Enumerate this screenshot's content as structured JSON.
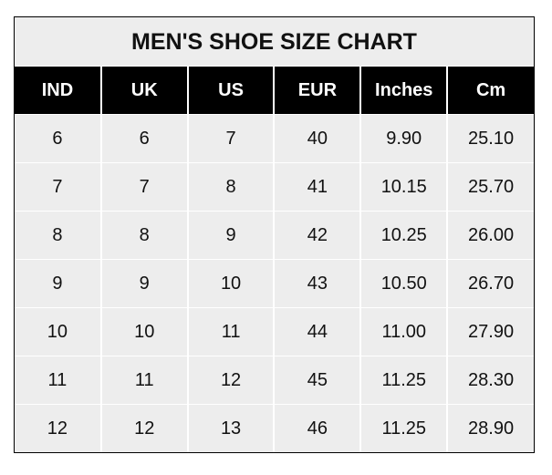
{
  "title": "MEN'S SHOE SIZE CHART",
  "columns": [
    "IND",
    "UK",
    "US",
    "EUR",
    "Inches",
    "Cm"
  ],
  "rows": [
    [
      "6",
      "6",
      "7",
      "40",
      "9.90",
      "25.10"
    ],
    [
      "7",
      "7",
      "8",
      "41",
      "10.15",
      "25.70"
    ],
    [
      "8",
      "8",
      "9",
      "42",
      "10.25",
      "26.00"
    ],
    [
      "9",
      "9",
      "10",
      "43",
      "10.50",
      "26.70"
    ],
    [
      "10",
      "10",
      "11",
      "44",
      "11.00",
      "27.90"
    ],
    [
      "11",
      "11",
      "12",
      "45",
      "11.25",
      "28.30"
    ],
    [
      "12",
      "12",
      "13",
      "46",
      "11.25",
      "28.90"
    ]
  ],
  "colors": {
    "header_bg": "#000000",
    "cell_bg": "#ededed",
    "grid": "#ffffff"
  }
}
